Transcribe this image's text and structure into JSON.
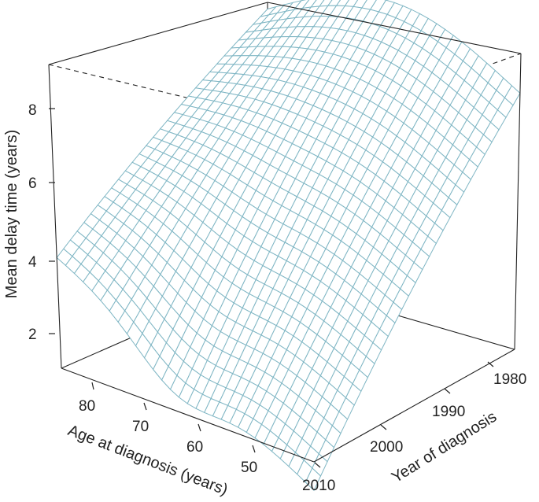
{
  "chart_data": {
    "type": "surface",
    "title": "",
    "zlabel": "Mean delay time (years)",
    "xlabel": "Age at diagnosis (years)",
    "ylabel": "Year of diagnosis",
    "z_ticks": [
      "2",
      "4",
      "6",
      "8"
    ],
    "age_ticks": [
      "80",
      "70",
      "60",
      "50"
    ],
    "year_ticks": [
      "1980",
      "1990",
      "2000",
      "2010"
    ],
    "zlim": [
      1,
      9.2
    ],
    "age_range": [
      85,
      45
    ],
    "year_range": [
      1980,
      2010
    ],
    "grid": false,
    "box": true,
    "surface_color": "#7fb6c4",
    "description_values": {
      "age_85_year_2010_delay": 4.0,
      "age_85_year_1980_delay": 9.0,
      "age_45_year_1980_delay": 7.5,
      "age_45_year_2010_delay": 0.3
    }
  }
}
